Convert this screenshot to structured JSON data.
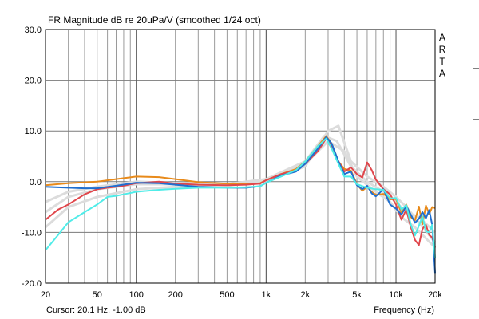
{
  "window": {
    "title": "FR Magnitude dB re 20uPa/V (smoothed 1/24 oct)",
    "brand_letters": [
      "A",
      "R",
      "T",
      "A"
    ],
    "cursor_readout": "Cursor: 20.1 Hz, -1.00 dB",
    "xlabel": "Frequency (Hz)"
  },
  "chart_data": {
    "type": "line",
    "title": "FR Magnitude dB re 20uPa/V (smoothed 1/24 oct)",
    "xlabel": "Frequency (Hz)",
    "ylabel": "",
    "x_scale": "log",
    "xlim": [
      20,
      20000
    ],
    "ylim": [
      -20,
      30
    ],
    "grid": true,
    "xticks": [
      20,
      50,
      100,
      200,
      500,
      1000,
      2000,
      5000,
      10000,
      20000
    ],
    "xtick_labels": [
      "20",
      "50",
      "100",
      "200",
      "500",
      "1k",
      "2k",
      "5k",
      "10k",
      "20k"
    ],
    "yticks": [
      30,
      20,
      10,
      0,
      -10,
      -20
    ],
    "ytick_labels": [
      "30.0",
      "20.0",
      "10.0",
      "0.0",
      "-10.0",
      "-20.0"
    ],
    "series": [
      {
        "name": "ref-gray-1",
        "color": "#dcdcdc",
        "x": [
          20,
          30,
          50,
          100,
          200,
          500,
          1000,
          2000,
          2800,
          3500,
          4500,
          6000,
          8000,
          10000,
          12000,
          15000,
          20000
        ],
        "y": [
          -6,
          -3,
          -1.5,
          -0.5,
          -0.5,
          -0.5,
          0.5,
          4,
          9,
          8,
          3,
          0,
          -2,
          -4,
          -6,
          -7,
          -10
        ]
      },
      {
        "name": "ref-gray-2",
        "color": "#dcdcdc",
        "x": [
          20,
          30,
          50,
          100,
          200,
          500,
          1000,
          2000,
          3000,
          3600,
          4500,
          6000,
          8000,
          10000,
          12000,
          15000,
          20000
        ],
        "y": [
          -9,
          -5,
          -3,
          -1.5,
          -1,
          -0.8,
          0,
          3,
          10,
          11,
          4,
          1,
          -1,
          -3,
          -5,
          -8,
          -12
        ]
      },
      {
        "name": "ref-gray-3",
        "color": "#dcdcdc",
        "x": [
          20,
          30,
          50,
          100,
          200,
          500,
          1000,
          2000,
          3000,
          4000,
          5000,
          7000,
          9000,
          11000,
          14000,
          20000
        ],
        "y": [
          -4,
          -2,
          -1,
          0,
          -0.3,
          -0.5,
          0.3,
          3.5,
          8,
          6,
          1,
          -2,
          -4,
          -7,
          -9,
          -13
        ]
      },
      {
        "name": "orange",
        "color": "#e88a1a",
        "x": [
          20,
          30,
          50,
          70,
          100,
          150,
          200,
          300,
          500,
          700,
          900,
          1000,
          1300,
          1700,
          2000,
          2500,
          2900,
          3200,
          3600,
          4000,
          4500,
          5000,
          5500,
          6000,
          6500,
          7000,
          8000,
          9000,
          10000,
          11000,
          12000,
          13000,
          14000,
          15000,
          16000,
          17000,
          18000,
          19000,
          20000
        ],
        "y": [
          -0.7,
          -0.3,
          0,
          0.5,
          1,
          0.9,
          0.5,
          -0.1,
          -0.4,
          -0.5,
          -0.3,
          0.3,
          1.5,
          2.5,
          4,
          7,
          9,
          7.5,
          4,
          2.5,
          2.2,
          -0.5,
          -1.8,
          -1,
          -2,
          -2.6,
          -2.4,
          -3.5,
          -3.4,
          -6.2,
          -4.5,
          -7,
          -7.6,
          -4.9,
          -8.4,
          -4.7,
          -6.4,
          -5,
          -5.2
        ]
      },
      {
        "name": "red",
        "color": "#e0474c",
        "x": [
          20,
          25,
          30,
          40,
          50,
          60,
          70,
          80,
          100,
          150,
          200,
          300,
          500,
          700,
          900,
          1000,
          1300,
          1700,
          2000,
          2500,
          2900,
          3200,
          3600,
          4000,
          4500,
          5000,
          5500,
          6000,
          6500,
          7000,
          8000,
          9000,
          10000,
          11000,
          12000,
          13000,
          14000,
          15000,
          16000,
          17000,
          18000,
          19000,
          20000
        ],
        "y": [
          -7.5,
          -5.5,
          -4.5,
          -2.5,
          -1.5,
          -1.2,
          -1,
          -0.8,
          -0.3,
          0,
          -0.4,
          -0.6,
          -0.7,
          -0.6,
          -0.4,
          0.3,
          1.5,
          2.2,
          3.5,
          6,
          8.5,
          7,
          4,
          2,
          2.8,
          1.5,
          0.8,
          3.8,
          2.3,
          0.4,
          -1.5,
          -2.5,
          -4.5,
          -7.5,
          -5.5,
          -9,
          -11.5,
          -12.5,
          -9.3,
          -8.5,
          -10.5,
          -11,
          -13
        ]
      },
      {
        "name": "blue",
        "color": "#1f6fd0",
        "x": [
          20,
          30,
          40,
          50,
          70,
          100,
          150,
          200,
          300,
          500,
          700,
          900,
          1000,
          1300,
          1700,
          2000,
          2500,
          2900,
          3200,
          3600,
          4000,
          4500,
          5000,
          5500,
          6000,
          6500,
          7000,
          8000,
          9000,
          10000,
          11000,
          12000,
          13000,
          14000,
          15000,
          16000,
          17000,
          18000,
          19000,
          20000
        ],
        "y": [
          -1,
          -1.2,
          -1.3,
          -1.3,
          -0.8,
          -0.2,
          -0.3,
          -0.6,
          -1,
          -1.2,
          -1.2,
          -0.9,
          -0.2,
          1.2,
          2,
          3.5,
          6.5,
          8.8,
          7.5,
          4,
          1.5,
          2,
          -0.7,
          -1.5,
          -0.8,
          -2.3,
          -2.9,
          -1.5,
          -4.5,
          -5.3,
          -6.5,
          -4.8,
          -6.5,
          -8.1,
          -7.3,
          -6,
          -7.2,
          -5.6,
          -8.5,
          -18
        ]
      },
      {
        "name": "cyan",
        "color": "#50ece8",
        "x": [
          20,
          25,
          30,
          40,
          50,
          60,
          70,
          80,
          100,
          150,
          200,
          300,
          500,
          700,
          900,
          1000,
          1300,
          1700,
          2000,
          2500,
          2900,
          3200,
          3600,
          4000,
          4500,
          5000,
          6000,
          7000,
          8000,
          9000,
          10000,
          11000,
          12000,
          13000,
          14000,
          15000,
          16000,
          17000,
          18000,
          19000,
          20000
        ],
        "y": [
          -13.5,
          -10.5,
          -8,
          -6,
          -4.5,
          -3,
          -2.8,
          -2.5,
          -2,
          -1.6,
          -1.4,
          -1.2,
          -1.2,
          -1.1,
          -0.9,
          -0.2,
          1,
          2.3,
          4,
          7,
          8.5,
          6.5,
          3.5,
          1,
          1,
          -0.5,
          -1.2,
          -1.5,
          -1.6,
          -3.3,
          -3.2,
          -5.5,
          -4.6,
          -8.5,
          -10.6,
          -8.7,
          -6.8,
          -9.8,
          -10,
          -8.5,
          -15
        ]
      }
    ]
  }
}
